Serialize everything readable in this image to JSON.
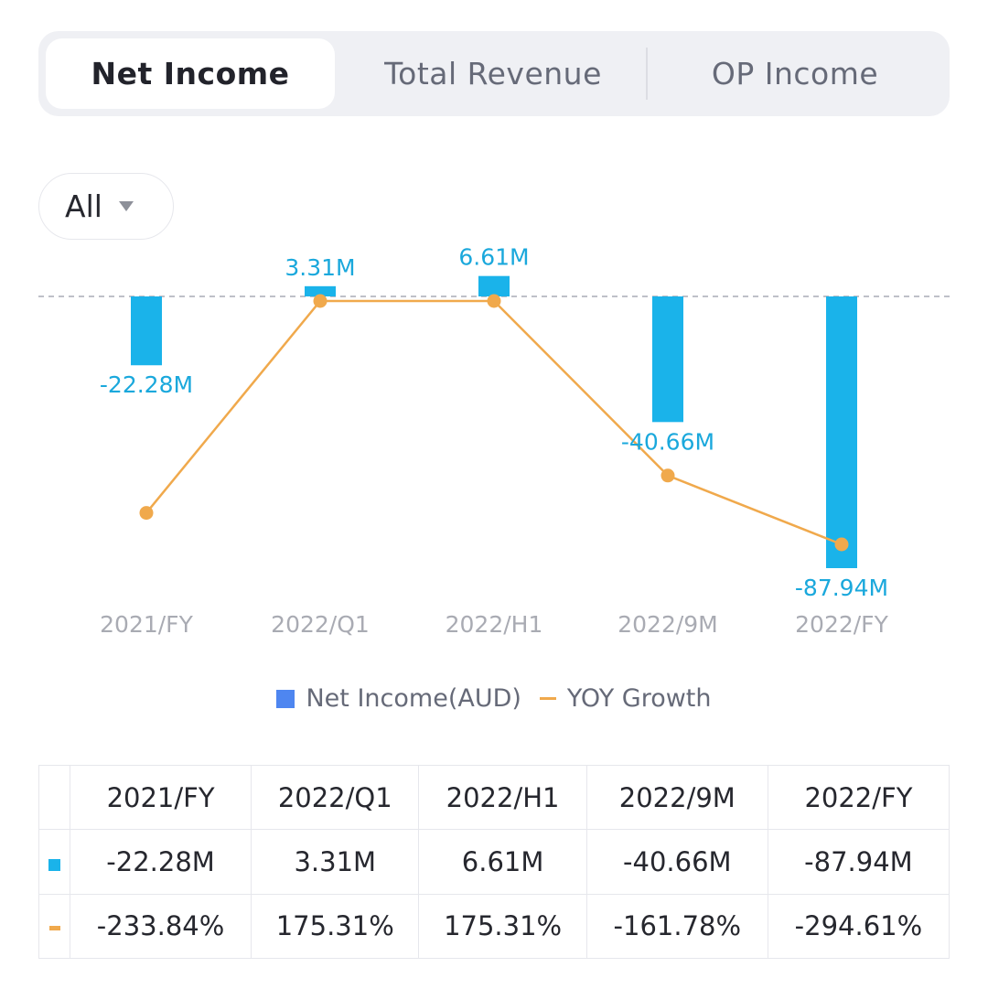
{
  "tabs": [
    {
      "label": "Net Income"
    },
    {
      "label": "Total Revenue"
    },
    {
      "label": "OP Income"
    }
  ],
  "period_filter": {
    "value": "All"
  },
  "legend": {
    "bar_label": "Net Income(AUD)",
    "line_label": "YOY Growth"
  },
  "colors": {
    "bar": "#1ab3ea",
    "line": "#f0a94c",
    "positive": "#3db26e",
    "negative": "#e25c5c"
  },
  "chart_data": {
    "type": "bar",
    "categories": [
      "2021/FY",
      "2022/Q1",
      "2022/H1",
      "2022/9M",
      "2022/FY"
    ],
    "series": [
      {
        "name": "Net Income(AUD)",
        "kind": "bar",
        "values": [
          -22.28,
          3.31,
          6.61,
          -40.66,
          -87.94
        ],
        "unit": "M",
        "labels": [
          "-22.28M",
          "3.31M",
          "6.61M",
          "-40.66M",
          "-87.94M"
        ]
      },
      {
        "name": "YOY Growth",
        "kind": "line",
        "values": [
          -233.84,
          175.31,
          175.31,
          -161.78,
          -294.61
        ],
        "unit": "%"
      }
    ],
    "bar_ylim": [
      -87.94,
      6.61
    ],
    "line_ylim": [
      -294.61,
      175.31
    ],
    "grid": false,
    "zero_line": "dashed"
  },
  "table": {
    "headers": [
      "2021/FY",
      "2022/Q1",
      "2022/H1",
      "2022/9M",
      "2022/FY"
    ],
    "income_row": [
      "-22.28M",
      "3.31M",
      "6.61M",
      "-40.66M",
      "-87.94M"
    ],
    "growth_row": [
      "-233.84%",
      "175.31%",
      "175.31%",
      "-161.78%",
      "-294.61%"
    ]
  }
}
